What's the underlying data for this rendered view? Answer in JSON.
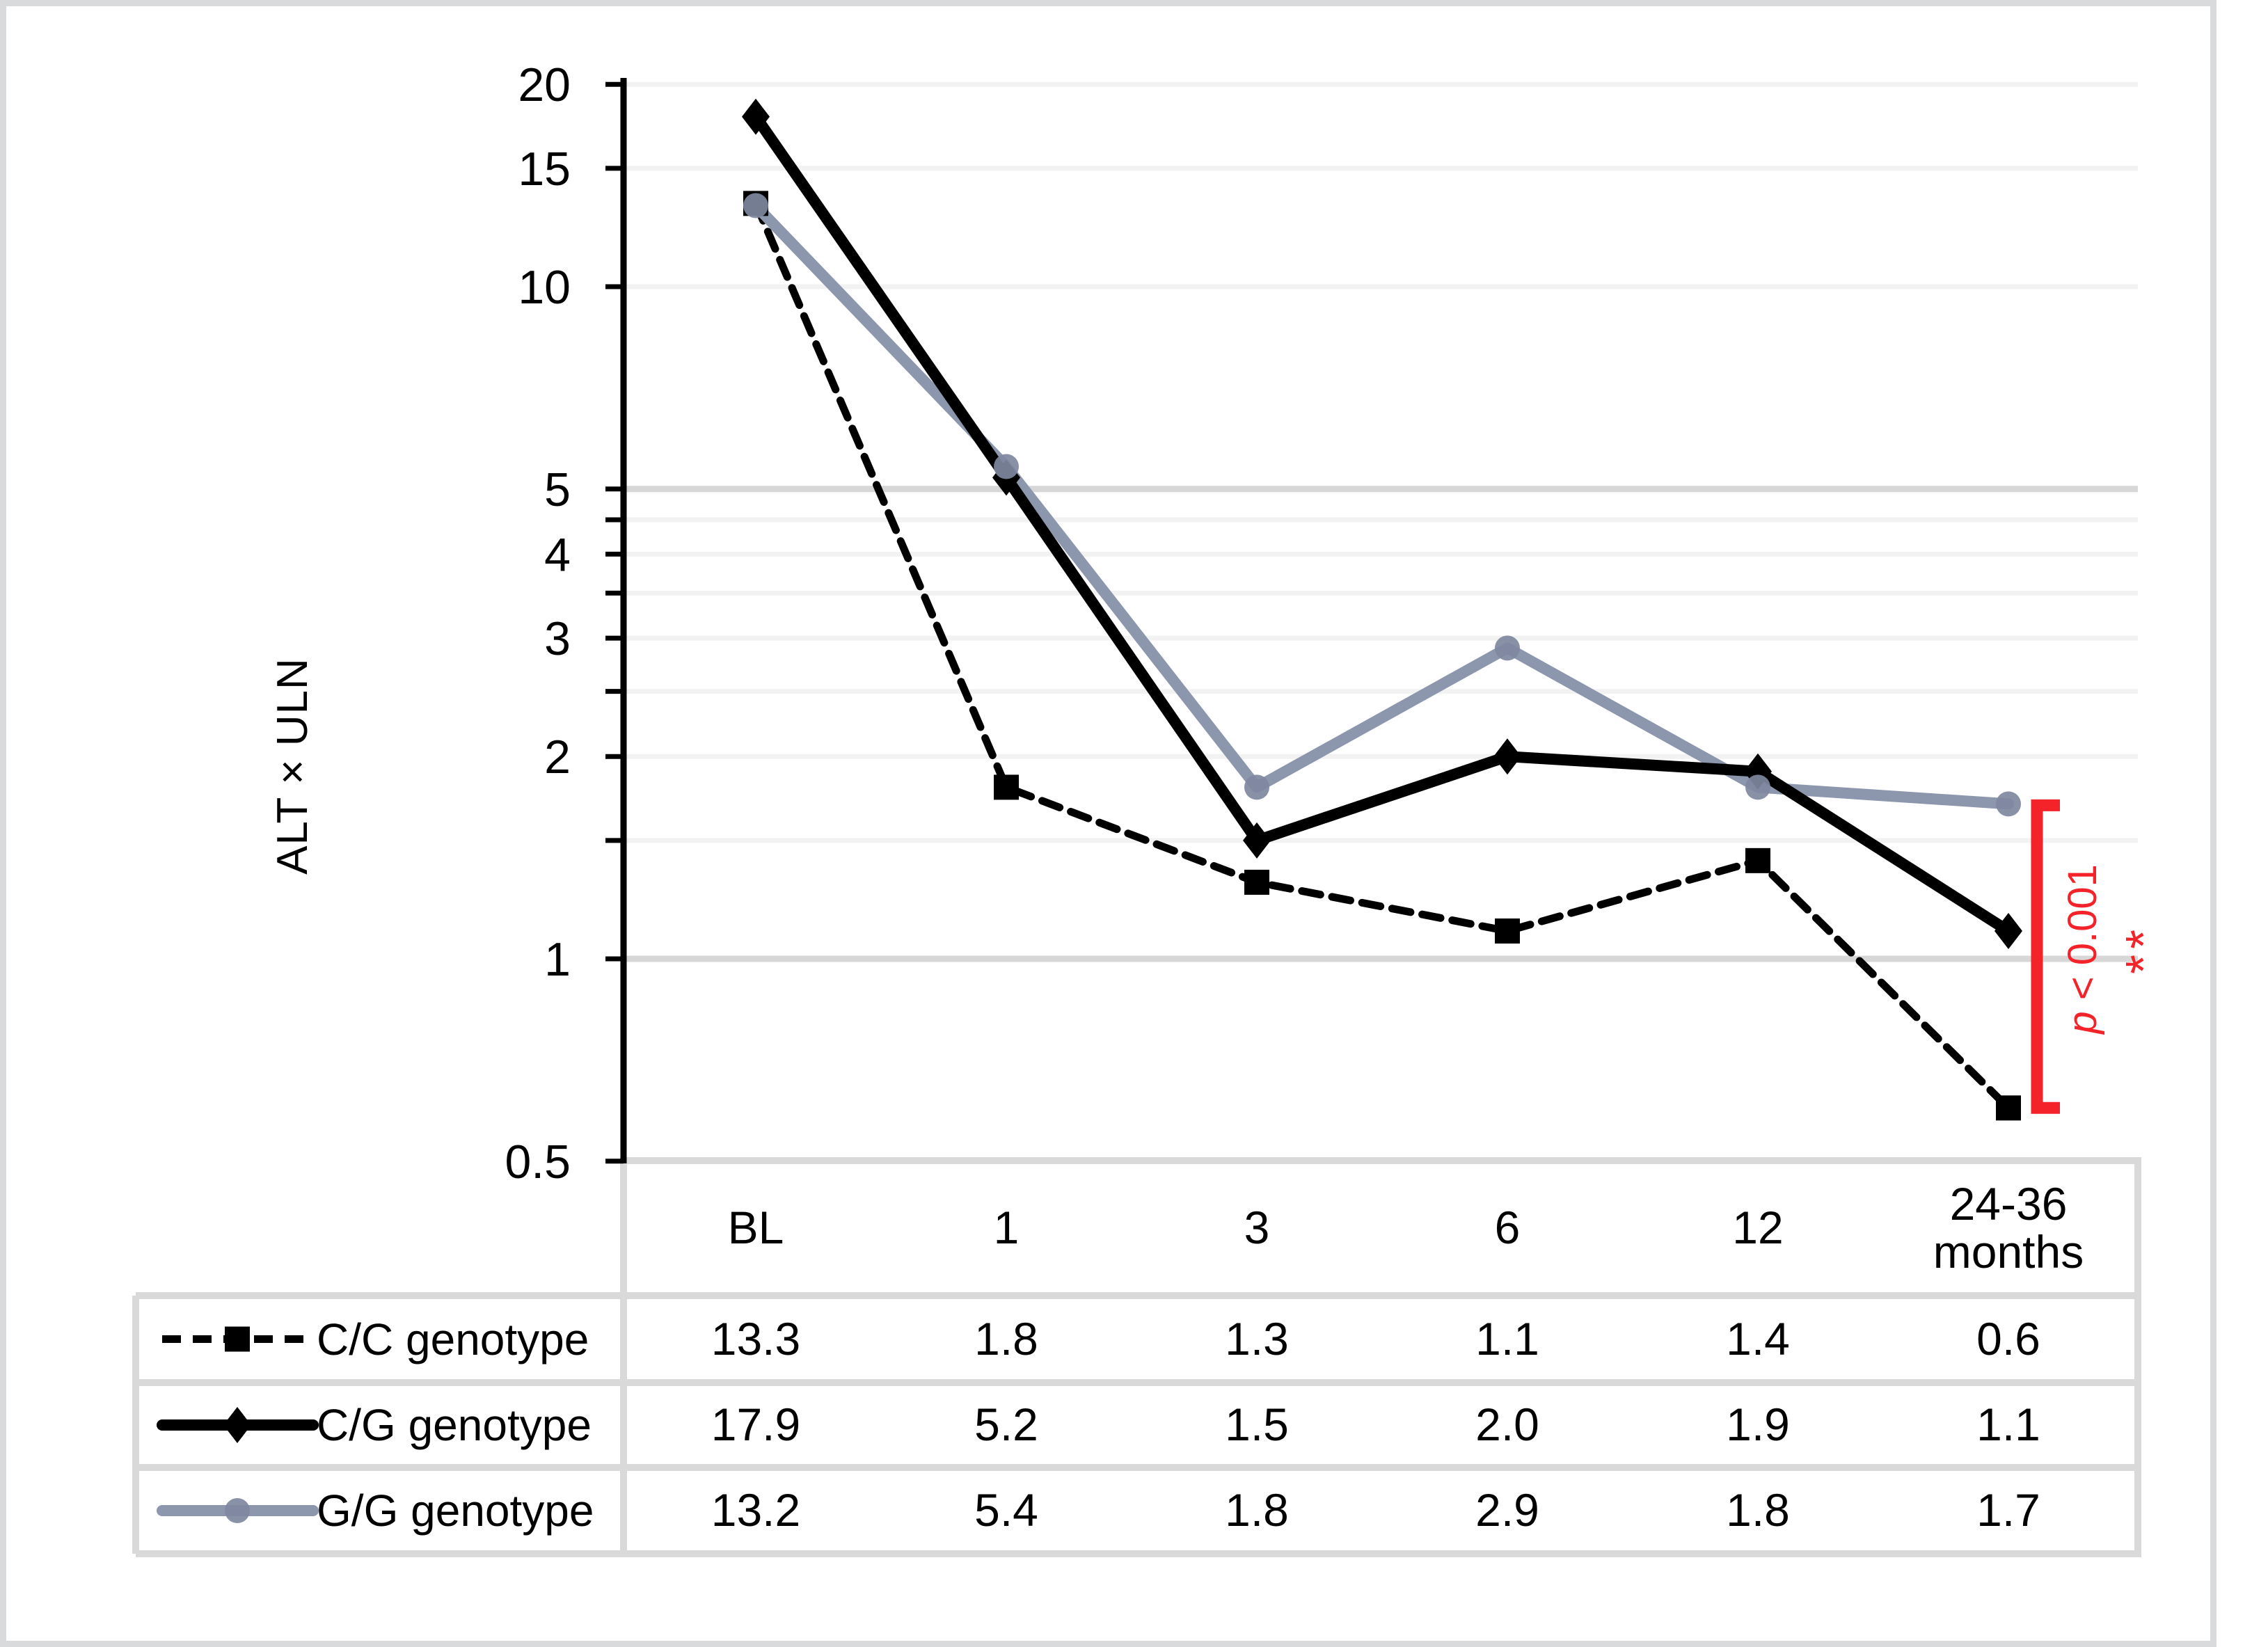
{
  "figure": {
    "y_axis_title": "ALT × ULN"
  },
  "chart_data": {
    "type": "line",
    "title": "",
    "xlabel": "",
    "ylabel": "ALT × ULN",
    "yscale": "log",
    "ylim": [
      0.5,
      20
    ],
    "grid": true,
    "legend_position": "data-table-left",
    "categories": [
      "BL",
      "1",
      "3",
      "6",
      "12",
      "24-36 months"
    ],
    "y_tick_labels": [
      "20",
      "15",
      "10",
      "5",
      "4",
      "3",
      "2",
      "1",
      "0.5"
    ],
    "y_tick_values": [
      20,
      15,
      10,
      5,
      4,
      3,
      2,
      1,
      0.5
    ],
    "y_minor_tick_values": [
      4.5,
      3.5,
      2.5,
      1.5
    ],
    "gridline_values_light": [
      20,
      15,
      10,
      4.5,
      4,
      3.5,
      3,
      2.5,
      2,
      1.5
    ],
    "gridline_values_dark": [
      5,
      1
    ],
    "series": [
      {
        "name": "C/C genotype",
        "values": [
          13.3,
          1.8,
          1.3,
          1.1,
          1.4,
          0.6
        ],
        "color": "#000000",
        "line_style": "dashed",
        "marker": "square",
        "marker_color": "#000000"
      },
      {
        "name": "C/G genotype",
        "values": [
          17.9,
          5.2,
          1.5,
          2.0,
          1.9,
          1.1
        ],
        "color": "#000000",
        "line_style": "solid",
        "marker": "diamond",
        "marker_color": "#000000"
      },
      {
        "name": "G/G genotype",
        "values": [
          13.2,
          5.4,
          1.8,
          2.9,
          1.8,
          1.7
        ],
        "color": "#8C96AC",
        "line_style": "solid",
        "marker": "circle",
        "marker_color": "#7F88A0"
      }
    ],
    "annotation": {
      "p_text": "p < 0.001",
      "stars": "**",
      "color": "#F4232A",
      "applies_to": "24-36 months",
      "bracket_from_value": 1.7,
      "bracket_to_value": 0.6
    }
  },
  "table": {
    "header_row": [
      "BL",
      "1",
      "3",
      "6",
      "12",
      "24-36 months"
    ],
    "rows": [
      {
        "label": "C/C genotype",
        "cells": [
          "13.3",
          "1.8",
          "1.3",
          "1.1",
          "1.4",
          "0.6"
        ]
      },
      {
        "label": "C/G genotype",
        "cells": [
          "17.9",
          "5.2",
          "1.5",
          "2.0",
          "1.9",
          "1.1"
        ]
      },
      {
        "label": "G/G genotype",
        "cells": [
          "13.2",
          "5.4",
          "1.8",
          "2.9",
          "1.8",
          "1.7"
        ]
      }
    ],
    "border_color": "#D9D9D9"
  }
}
